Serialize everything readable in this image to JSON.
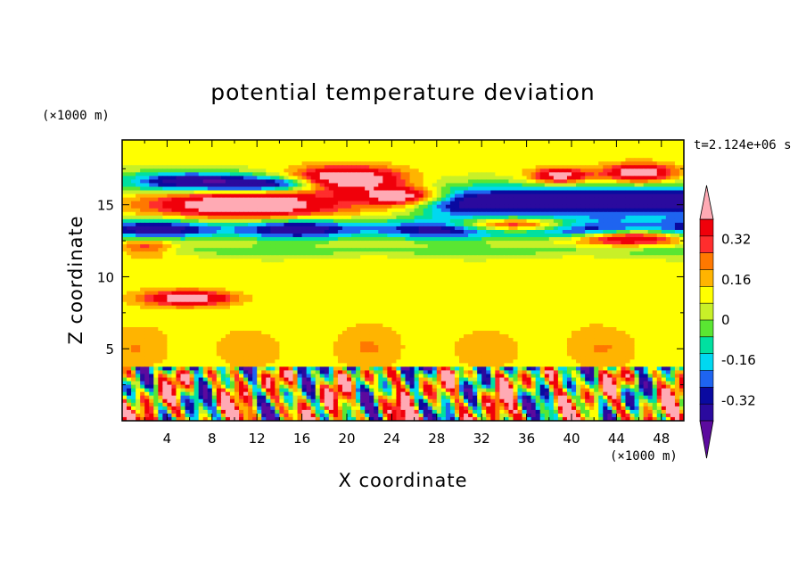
{
  "palette": {
    "levels": [
      "#5c0a9e",
      "#2a0a9e",
      "#0a0aa0",
      "#1e64f0",
      "#00d8f0",
      "#00e0a0",
      "#5ae632",
      "#c8f028",
      "#ffff00",
      "#ffb400",
      "#ff7800",
      "#ff2d2d",
      "#f0000a",
      "#ffaab4"
    ],
    "background": "#ffffff",
    "frame": "#000000"
  },
  "chart_data": {
    "type": "heatmap",
    "title": "potential temperature deviation",
    "xlabel": "X coordinate",
    "ylabel": "Z coordinate",
    "x_unit": "(×1000 m)",
    "z_unit": "(×1000 m)",
    "time_label": "t=2.124e+06 s",
    "xlim": [
      0,
      50
    ],
    "ylim": [
      0,
      19.5
    ],
    "x_ticks": [
      "4",
      "8",
      "12",
      "16",
      "20",
      "24",
      "28",
      "32",
      "36",
      "40",
      "44",
      "48"
    ],
    "x_tick_values": [
      4,
      8,
      12,
      16,
      20,
      24,
      28,
      32,
      36,
      40,
      44,
      48
    ],
    "y_ticks": [
      "5",
      "10",
      "15"
    ],
    "y_tick_values": [
      5,
      10,
      15
    ],
    "colorbar": {
      "labels": [
        "0.32",
        "0.16",
        "0",
        "-0.16",
        "-0.32"
      ],
      "label_values": [
        0.32,
        0.16,
        0,
        -0.16,
        -0.32
      ],
      "step": 0.04,
      "levels": [
        -0.48,
        -0.44,
        -0.4,
        -0.36,
        -0.32,
        -0.28,
        -0.24,
        -0.2,
        -0.16,
        -0.12,
        -0.08,
        -0.04,
        0,
        0.04,
        0.08,
        0.12,
        0.16,
        0.2,
        0.24,
        0.28,
        0.32,
        0.36,
        0.4
      ],
      "extend": "both"
    },
    "features": [
      {
        "name": "upper warm anomaly",
        "x": [
          3,
          22
        ],
        "z": [
          14.2,
          17.6
        ],
        "value": 0.42
      },
      {
        "name": "upper cold layer",
        "x": [
          0,
          50
        ],
        "z": [
          12.6,
          14.2
        ],
        "value": -0.42
      },
      {
        "name": "tropopause cold band",
        "x": [
          28,
          50
        ],
        "z": [
          14.2,
          16.6
        ],
        "value": -0.4
      },
      {
        "name": "mid-level neutral layer",
        "x": [
          0,
          50
        ],
        "z": [
          4.5,
          11.5
        ],
        "value": 0.02
      },
      {
        "name": "boundary-layer plumes",
        "x": [
          0,
          50
        ],
        "z": [
          0,
          3.6
        ],
        "value": 0.0
      }
    ]
  }
}
